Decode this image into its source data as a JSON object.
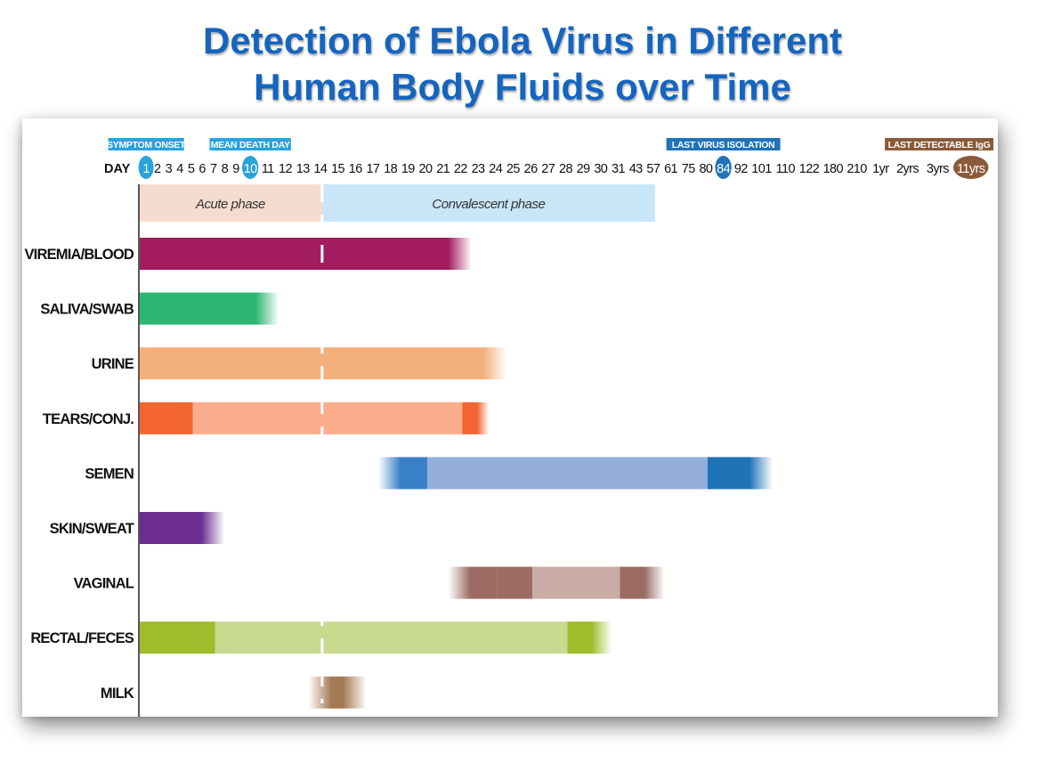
{
  "title_line1": "Detection of Ebola Virus in Different",
  "title_line2": "Human Body Fluids over Time",
  "chart_data": {
    "type": "bar",
    "subtype": "range-timeline",
    "axis_prefix": "DAY",
    "ticks": [
      "1",
      "2",
      "3",
      "4",
      "5",
      "6",
      "7",
      "8",
      "9",
      "10",
      "11",
      "12",
      "13",
      "14",
      "15",
      "16",
      "17",
      "18",
      "19",
      "20",
      "21",
      "22",
      "23",
      "24",
      "25",
      "26",
      "27",
      "28",
      "29",
      "30",
      "31",
      "43",
      "57",
      "61",
      "75",
      "80",
      "84",
      "92",
      "101",
      "110",
      "122",
      "180",
      "210",
      "1yr",
      "2yrs",
      "3yrs",
      "11yrs"
    ],
    "highlighted_ticks": [
      {
        "tick": "1",
        "color": "#29a3dc"
      },
      {
        "tick": "10",
        "color": "#29a3dc"
      },
      {
        "tick": "84",
        "color": "#1f73b7"
      },
      {
        "tick": "11yrs",
        "color": "#8a5a3a"
      }
    ],
    "milestones": [
      {
        "label": "SYMPTOM ONSET",
        "at_tick": "1",
        "color": "#29a3dc"
      },
      {
        "label": "MEAN DEATH DAY",
        "at_tick": "10",
        "color": "#29a3dc"
      },
      {
        "label": "LAST VIRUS ISOLATION",
        "at_tick": "84",
        "color": "#1f73b7"
      },
      {
        "label": "LAST DETECTABLE IgG",
        "at_tick": "11yrs",
        "color": "#8a5a3a"
      }
    ],
    "phases": [
      {
        "label": "Acute phase",
        "start": "1",
        "end": "14",
        "color": "#f6dccf"
      },
      {
        "label": "Convalescent phase",
        "start": "14",
        "end": "57",
        "color": "#c8e6f8"
      }
    ],
    "divider_at": "14",
    "fluids": [
      {
        "name": "VIREMIA/BLOOD",
        "segments": [
          {
            "start": "1",
            "end": "22",
            "color": "#a31c5f",
            "fade_end": true
          }
        ]
      },
      {
        "name": "SALIVA/SWAB",
        "segments": [
          {
            "start": "1",
            "end": "11",
            "color": "#2cb673",
            "fade_end": true
          }
        ]
      },
      {
        "name": "URINE",
        "segments": [
          {
            "start": "1",
            "end": "24",
            "color": "#f4b07c",
            "fade_end": true
          }
        ]
      },
      {
        "name": "TEARS/CONJ.",
        "segments": [
          {
            "start": "1",
            "end": "5",
            "color": "#f26530"
          },
          {
            "start": "5",
            "end": "22",
            "color": "#f9ad8c"
          },
          {
            "start": "22",
            "end": "23",
            "color": "#f26530",
            "fade_end": true
          }
        ]
      },
      {
        "name": "SEMEN",
        "segments": [
          {
            "start": "18",
            "end": "20",
            "color": "#3a80c9",
            "fade_start": true
          },
          {
            "start": "20",
            "end": "80",
            "color": "#93aedb"
          },
          {
            "start": "80",
            "end": "101",
            "color": "#1f73b7",
            "fade_end": true
          }
        ]
      },
      {
        "name": "SKIN/SWEAT",
        "segments": [
          {
            "start": "1",
            "end": "7",
            "color": "#6b2d91",
            "fade_end": true
          }
        ]
      },
      {
        "name": "VAGINAL",
        "segments": [
          {
            "start": "22",
            "end": "24",
            "color": "#9b6b64",
            "fade_start": true
          },
          {
            "start": "24",
            "end": "26",
            "color": "#9b6b64"
          },
          {
            "start": "26",
            "end": "31",
            "color": "#c8aca5"
          },
          {
            "start": "31",
            "end": "57",
            "color": "#9b6b64",
            "fade_end": true
          }
        ]
      },
      {
        "name": "RECTAL/FECES",
        "segments": [
          {
            "start": "1",
            "end": "7",
            "color": "#9ebc2c"
          },
          {
            "start": "7",
            "end": "28",
            "color": "#cad990"
          },
          {
            "start": "28",
            "end": "30",
            "color": "#9ebc2c",
            "fade_end": true
          }
        ]
      },
      {
        "name": "MILK",
        "segments": [
          {
            "start": "14",
            "end": "16",
            "color": "#a47a55",
            "fade_start": true,
            "fade_end": true
          }
        ]
      }
    ]
  }
}
